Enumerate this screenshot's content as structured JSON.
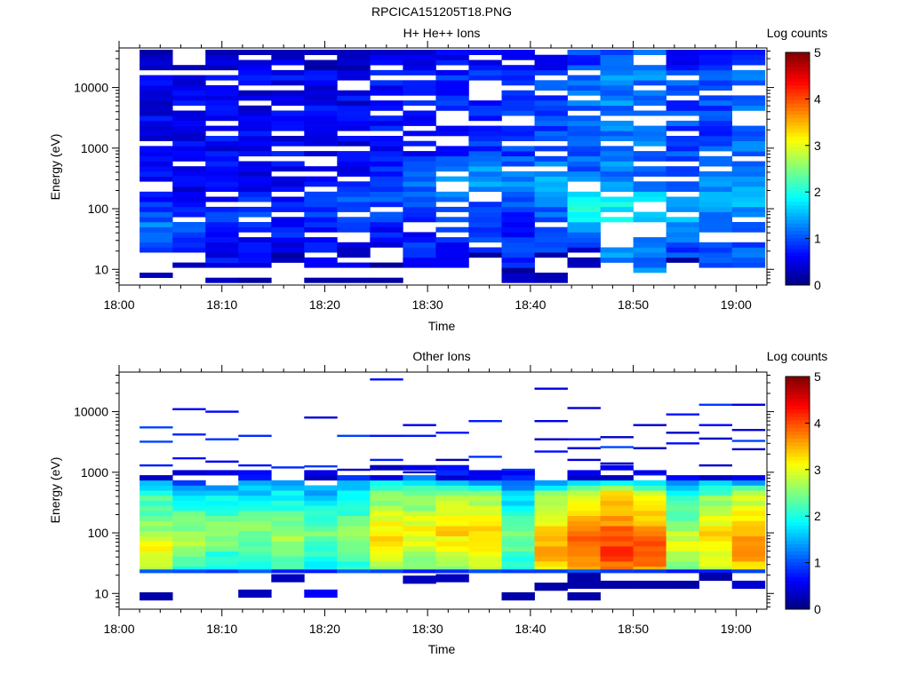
{
  "figure_title": "RPCICA151205T18.PNG",
  "colormap": [
    "#00007f",
    "#0000ff",
    "#007fff",
    "#00ffff",
    "#7fff7f",
    "#ffff00",
    "#ff7f00",
    "#ff0000",
    "#7f0000"
  ],
  "chart_data": [
    {
      "type": "heatmap",
      "title": "H+ He++ Ions",
      "xlabel": "Time",
      "ylabel": "Energy (eV)",
      "x_ticks": [
        "18:00",
        "18:10",
        "18:20",
        "18:30",
        "18:40",
        "18:50",
        "19:00"
      ],
      "x_range_min": [
        0,
        63
      ],
      "y_scale": "log",
      "ylim": [
        5.5,
        45000
      ],
      "y_ticks": [
        "10",
        "100",
        "1000",
        "10000"
      ],
      "colorbar": {
        "label": "Log counts",
        "range": [
          0,
          5
        ],
        "ticks": [
          "0",
          "1",
          "2",
          "3",
          "4",
          "5"
        ]
      },
      "time_bins_min": [
        2,
        5.2,
        8.4,
        11.6,
        14.8,
        18,
        21.2,
        24.4,
        27.6,
        30.8,
        34,
        37.2,
        40.4,
        43.6,
        46.8,
        50,
        53.2,
        56.4,
        59.6
      ],
      "energy_range_eV": [
        6,
        42000
      ],
      "ridge": {
        "base": [
          0.55,
          0.55,
          0.6,
          0.55,
          0.6,
          0.6,
          0.55,
          0.65,
          0.75,
          0.8,
          0.85,
          0.8,
          0.95,
          1.1,
          1.25,
          1.2,
          0.95,
          0.95,
          1.1
        ],
        "peak": [
          1.2,
          1.0,
          0.9,
          1.0,
          0.8,
          0.8,
          1.0,
          1.0,
          1.2,
          1.3,
          1.4,
          1.3,
          1.5,
          2.0,
          1.9,
          1.8,
          1.5,
          1.4,
          1.6
        ],
        "center_eV": [
          50,
          60,
          80,
          80,
          90,
          100,
          120,
          150,
          200,
          250,
          300,
          300,
          250,
          110,
          90,
          90,
          90,
          150,
          200
        ],
        "width_dex": 0.35,
        "low_cut_eV": [
          15,
          18,
          10,
          10,
          20,
          10,
          10,
          25,
          10,
          10,
          20,
          10,
          20,
          25,
          10,
          8,
          15,
          10,
          10
        ],
        "gap_fraction": 0.18
      }
    },
    {
      "type": "heatmap",
      "title": "Other Ions",
      "xlabel": "Time",
      "ylabel": "Energy (eV)",
      "x_ticks": [
        "18:00",
        "18:10",
        "18:20",
        "18:30",
        "18:40",
        "18:50",
        "19:00"
      ],
      "x_range_min": [
        0,
        63
      ],
      "y_scale": "log",
      "ylim": [
        5.5,
        45000
      ],
      "y_ticks": [
        "10",
        "100",
        "1000",
        "10000"
      ],
      "colorbar": {
        "label": "Log counts",
        "range": [
          0,
          5
        ],
        "ticks": [
          "0",
          "1",
          "2",
          "3",
          "4",
          "5"
        ]
      },
      "time_bins_min": [
        2,
        5.2,
        8.4,
        11.6,
        14.8,
        18,
        21.2,
        24.4,
        27.6,
        30.8,
        34,
        37.2,
        40.4,
        43.6,
        46.8,
        50,
        53.2,
        56.4,
        59.6
      ],
      "energy_range_eV": [
        6,
        42000
      ],
      "band": {
        "low_eV": 25,
        "high_eV": [
          700,
          650,
          650,
          700,
          700,
          650,
          700,
          800,
          850,
          750,
          700,
          700,
          700,
          700,
          750,
          700,
          700,
          700,
          700
        ],
        "level": [
          2.6,
          2.2,
          2.0,
          2.0,
          2.2,
          1.9,
          2.1,
          2.8,
          2.6,
          2.8,
          2.9,
          1.9,
          3.0,
          3.4,
          3.6,
          3.5,
          2.4,
          2.8,
          3.2
        ],
        "peak_eV": [
          45,
          80,
          100,
          100,
          80,
          100,
          80,
          80,
          100,
          120,
          100,
          80,
          60,
          60,
          60,
          55,
          60,
          80,
          60
        ],
        "upper_edge_level": 1.3,
        "bottom_row_eV": 23,
        "bottom_row_level": 0.9
      },
      "sparse_high_energy": [
        {
          "bin": 0,
          "eV": 5500
        },
        {
          "bin": 0,
          "eV": 3200
        },
        {
          "bin": 0,
          "eV": 1300
        },
        {
          "bin": 1,
          "eV": 11000
        },
        {
          "bin": 1,
          "eV": 4200
        },
        {
          "bin": 1,
          "eV": 1700
        },
        {
          "bin": 2,
          "eV": 10000
        },
        {
          "bin": 2,
          "eV": 3500
        },
        {
          "bin": 2,
          "eV": 1500
        },
        {
          "bin": 3,
          "eV": 4000
        },
        {
          "bin": 3,
          "eV": 1300
        },
        {
          "bin": 4,
          "eV": 1200
        },
        {
          "bin": 5,
          "eV": 8000
        },
        {
          "bin": 5,
          "eV": 1250
        },
        {
          "bin": 6,
          "eV": 4000
        },
        {
          "bin": 6,
          "eV": 1100
        },
        {
          "bin": 7,
          "eV": 34000
        },
        {
          "bin": 7,
          "eV": 4000
        },
        {
          "bin": 7,
          "eV": 1600
        },
        {
          "bin": 8,
          "eV": 6000
        },
        {
          "bin": 8,
          "eV": 4000
        },
        {
          "bin": 8,
          "eV": 1000
        },
        {
          "bin": 9,
          "eV": 4500
        },
        {
          "bin": 9,
          "eV": 1600
        },
        {
          "bin": 10,
          "eV": 7000
        },
        {
          "bin": 10,
          "eV": 1800
        },
        {
          "bin": 10,
          "eV": 1000
        },
        {
          "bin": 11,
          "eV": 1100
        },
        {
          "bin": 12,
          "eV": 24000
        },
        {
          "bin": 12,
          "eV": 7000
        },
        {
          "bin": 12,
          "eV": 3500
        },
        {
          "bin": 12,
          "eV": 2200
        },
        {
          "bin": 13,
          "eV": 11500
        },
        {
          "bin": 13,
          "eV": 3500
        },
        {
          "bin": 13,
          "eV": 2500
        },
        {
          "bin": 13,
          "eV": 1600
        },
        {
          "bin": 14,
          "eV": 3800
        },
        {
          "bin": 14,
          "eV": 2600
        },
        {
          "bin": 14,
          "eV": 1400
        },
        {
          "bin": 15,
          "eV": 6000
        },
        {
          "bin": 15,
          "eV": 2500
        },
        {
          "bin": 15,
          "eV": 1000
        },
        {
          "bin": 16,
          "eV": 9000
        },
        {
          "bin": 16,
          "eV": 4500
        },
        {
          "bin": 16,
          "eV": 3000
        },
        {
          "bin": 17,
          "eV": 13000
        },
        {
          "bin": 17,
          "eV": 6000
        },
        {
          "bin": 17,
          "eV": 3600
        },
        {
          "bin": 17,
          "eV": 1300
        },
        {
          "bin": 18,
          "eV": 13000
        },
        {
          "bin": 18,
          "eV": 5000
        },
        {
          "bin": 18,
          "eV": 3300
        },
        {
          "bin": 18,
          "eV": 2400
        }
      ],
      "low_energy_blocks": [
        {
          "bin": 0,
          "eV": 9,
          "level": 0.2
        },
        {
          "bin": 3,
          "eV": 10,
          "level": 0.3
        },
        {
          "bin": 5,
          "eV": 10,
          "level": 0.6
        },
        {
          "bin": 4,
          "eV": 18,
          "level": 0.3
        },
        {
          "bin": 9,
          "eV": 18,
          "level": 0.3
        },
        {
          "bin": 8,
          "eV": 17,
          "level": 0.3
        },
        {
          "bin": 11,
          "eV": 9,
          "level": 0.2
        },
        {
          "bin": 12,
          "eV": 13,
          "level": 0.2
        },
        {
          "bin": 13,
          "eV": 14,
          "level": 0.2
        },
        {
          "bin": 13,
          "eV": 9,
          "level": 0.2
        },
        {
          "bin": 13,
          "eV": 19,
          "level": 0.2
        },
        {
          "bin": 14,
          "eV": 14,
          "level": 0.2
        },
        {
          "bin": 15,
          "eV": 14,
          "level": 0.2
        },
        {
          "bin": 16,
          "eV": 14,
          "level": 0.2
        },
        {
          "bin": 17,
          "eV": 19,
          "level": 0.2
        },
        {
          "bin": 18,
          "eV": 14,
          "level": 0.4
        }
      ]
    }
  ]
}
